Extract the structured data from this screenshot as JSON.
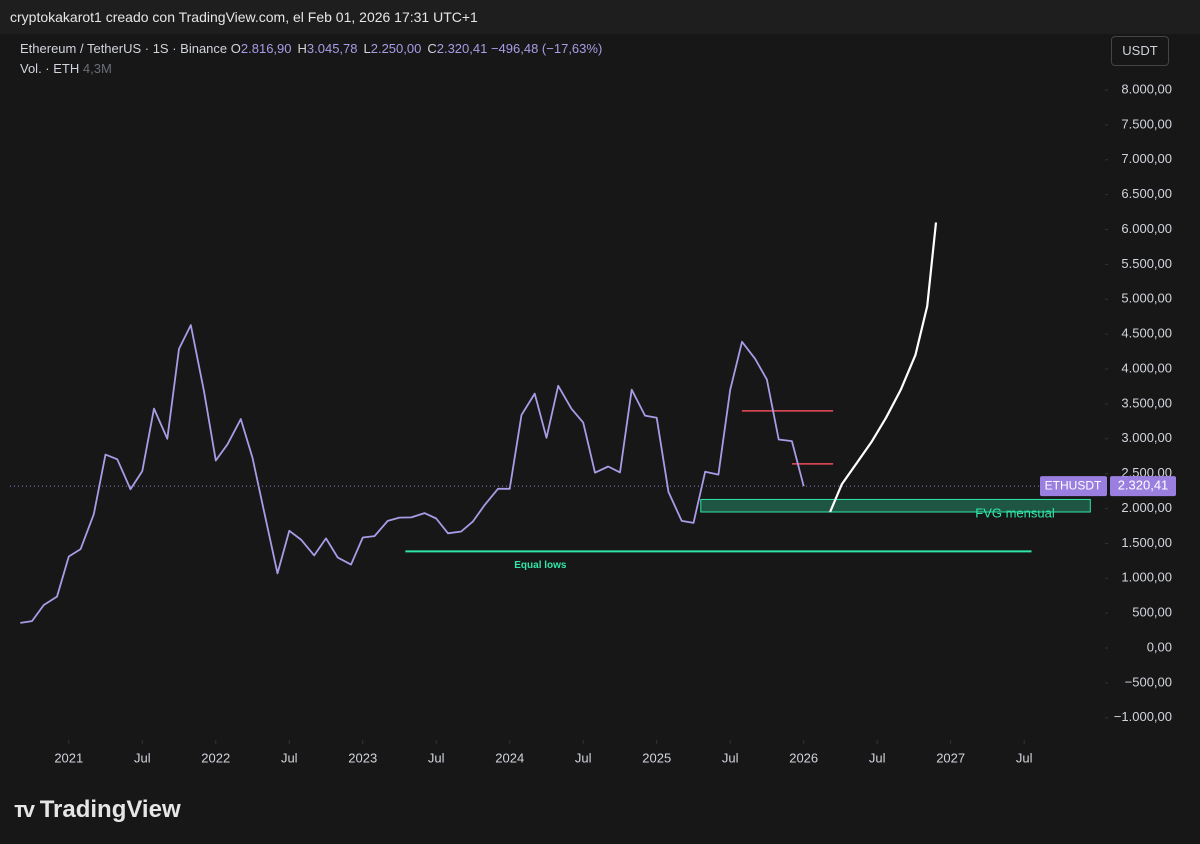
{
  "header": {
    "caption": "cryptokakarot1 creado con TradingView.com, el Feb 01, 2026 17:31 UTC+1",
    "symbol": "Ethereum / TetherUS · 1S · Binance",
    "ohlc": [
      {
        "key": "O",
        "value": "2.816,90"
      },
      {
        "key": "H",
        "value": "3.045,78"
      },
      {
        "key": "L",
        "value": "2.250,00"
      },
      {
        "key": "C",
        "value": "2.320,41"
      }
    ],
    "change": "−496,48 (−17,63%)",
    "volume_label": "Vol. · ETH",
    "volume_value": "4,3M",
    "currency": "USDT"
  },
  "logo": "TradingView",
  "chart_data": {
    "type": "line",
    "x": [
      2020.67,
      2020.75,
      2020.83,
      2020.92,
      2021.0,
      2021.08,
      2021.17,
      2021.25,
      2021.33,
      2021.42,
      2021.5,
      2021.58,
      2021.67,
      2021.75,
      2021.83,
      2021.92,
      2022.0,
      2022.08,
      2022.17,
      2022.25,
      2022.33,
      2022.42,
      2022.5,
      2022.58,
      2022.67,
      2022.75,
      2022.83,
      2022.92,
      2023.0,
      2023.08,
      2023.17,
      2023.25,
      2023.33,
      2023.42,
      2023.5,
      2023.58,
      2023.67,
      2023.75,
      2023.83,
      2023.92,
      2024.0,
      2024.08,
      2024.17,
      2024.25,
      2024.33,
      2024.42,
      2024.5,
      2024.58,
      2024.67,
      2024.75,
      2024.83,
      2024.92,
      2025.0,
      2025.08,
      2025.17,
      2025.25,
      2025.33,
      2025.42,
      2025.5,
      2025.58,
      2025.67,
      2025.75,
      2025.83,
      2025.92,
      2026.0
    ],
    "series": [
      {
        "name": "ETHUSDT",
        "color": "#a99be6",
        "values": [
          360,
          386,
          616,
          737,
          1312,
          1418,
          1918,
          2773,
          2706,
          2275,
          2536,
          3433,
          3000,
          4288,
          4630,
          3680,
          2688,
          2920,
          3282,
          2727,
          1942,
          1070,
          1680,
          1554,
          1328,
          1572,
          1296,
          1196,
          1585,
          1605,
          1822,
          1870,
          1873,
          1934,
          1857,
          1645,
          1671,
          1815,
          2052,
          2282,
          2283,
          3340,
          3647,
          3014,
          3760,
          3430,
          3232,
          2513,
          2602,
          2518,
          3705,
          3332,
          3300,
          2237,
          1822,
          1793,
          2528,
          2486,
          3700,
          4390,
          4145,
          3848,
          2990,
          2967,
          2320
        ]
      }
    ],
    "last_price": {
      "value": 2320.41,
      "label": "2.320,41"
    },
    "projection": {
      "color": "#ffffff",
      "x": [
        2026.18,
        2026.26,
        2026.36,
        2026.46,
        2026.56,
        2026.66,
        2026.76,
        2026.84,
        2026.9
      ],
      "values": [
        1950,
        2350,
        2650,
        2950,
        3300,
        3700,
        4200,
        4900,
        6100
      ]
    },
    "annotations": [
      {
        "label": "Equal lows",
        "color": "#2ee6a8",
        "y": 1385,
        "x": [
          2023.29,
          2027.55
        ]
      },
      {
        "color": "#f04b5a",
        "y": 3400,
        "x": [
          2025.58,
          2026.2
        ]
      },
      {
        "color": "#f04b5a",
        "y": 2640,
        "x": [
          2025.92,
          2026.2
        ]
      }
    ],
    "zone": {
      "label": "FVG mensual",
      "color": "#2ee6a8",
      "y": [
        1950,
        2130
      ],
      "x": [
        2025.3,
        2027.95
      ]
    },
    "ylim": [
      -1319,
      8789
    ],
    "yticks": [
      {
        "value": 8000,
        "label": "8.000,00"
      },
      {
        "value": 7500,
        "label": "7.500,00"
      },
      {
        "value": 7000,
        "label": "7.000,00"
      },
      {
        "value": 6500,
        "label": "6.500,00"
      },
      {
        "value": 6000,
        "label": "6.000,00"
      },
      {
        "value": 5500,
        "label": "5.500,00"
      },
      {
        "value": 5000,
        "label": "5.000,00"
      },
      {
        "value": 4500,
        "label": "4.500,00"
      },
      {
        "value": 4000,
        "label": "4.000,00"
      },
      {
        "value": 3500,
        "label": "3.500,00"
      },
      {
        "value": 3000,
        "label": "3.000,00"
      },
      {
        "value": 2500,
        "label": "2.500,00"
      },
      {
        "value": 2000,
        "label": "2.000,00"
      },
      {
        "value": 1500,
        "label": "1.500,00"
      },
      {
        "value": 1000,
        "label": "1.000,00"
      },
      {
        "value": 500,
        "label": "500,00"
      },
      {
        "value": 0,
        "label": "0,00"
      },
      {
        "value": -500,
        "label": "−500,00"
      },
      {
        "value": -1000,
        "label": "−1.000,00"
      }
    ],
    "xlim": [
      2020.6,
      2028.05
    ],
    "xticks": [
      {
        "value": 2021,
        "label": "2021"
      },
      {
        "value": 2021.5,
        "label": "Jul"
      },
      {
        "value": 2022,
        "label": "2022"
      },
      {
        "value": 2022.5,
        "label": "Jul"
      },
      {
        "value": 2023,
        "label": "2023"
      },
      {
        "value": 2023.5,
        "label": "Jul"
      },
      {
        "value": 2024,
        "label": "2024"
      },
      {
        "value": 2024.5,
        "label": "Jul"
      },
      {
        "value": 2025,
        "label": "2025"
      },
      {
        "value": 2025.5,
        "label": "Jul"
      },
      {
        "value": 2026,
        "label": "2026"
      },
      {
        "value": 2026.5,
        "label": "Jul"
      },
      {
        "value": 2027,
        "label": "2027"
      },
      {
        "value": 2027.5,
        "label": "Jul"
      }
    ]
  }
}
